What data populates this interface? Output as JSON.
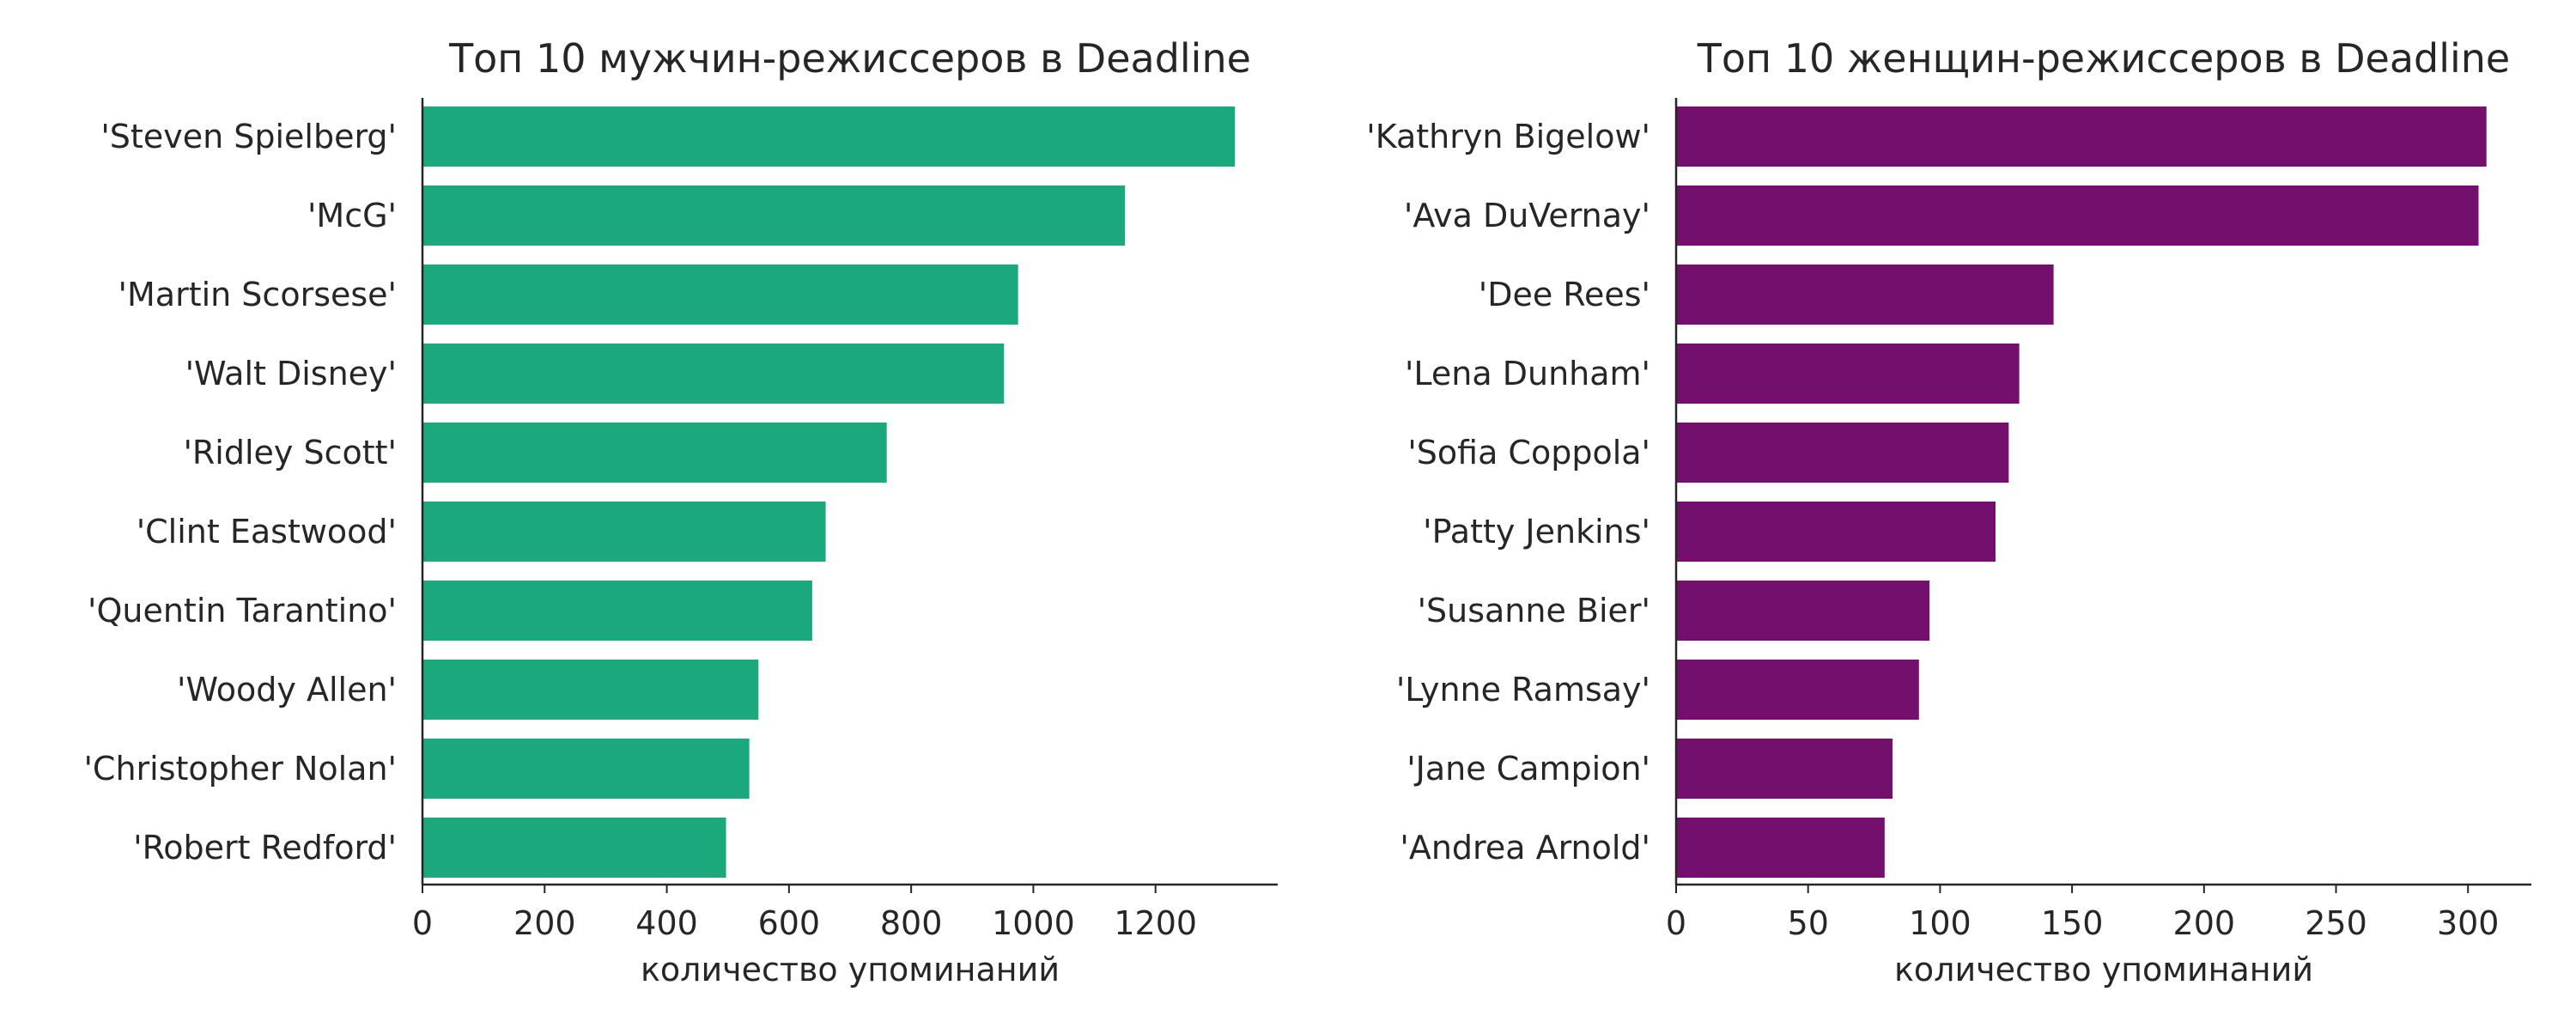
{
  "chart_data": [
    {
      "type": "bar",
      "orientation": "horizontal",
      "title": "Топ 10 мужчин-режиссеров в Deadline",
      "xlabel": "количество упоминаний",
      "ylabel": "",
      "categories": [
        "'Steven Spielberg'",
        "'McG'",
        "'Martin Scorsese'",
        "'Walt Disney'",
        "'Ridley Scott'",
        "'Clint Eastwood'",
        "'Quentin Tarantino'",
        "'Woody Allen'",
        "'Christopher Nolan'",
        "'Robert Redford'"
      ],
      "values": [
        1330,
        1150,
        975,
        952,
        760,
        660,
        638,
        550,
        535,
        497
      ],
      "xlim": [
        0,
        1400
      ],
      "xticks": [
        0,
        200,
        400,
        600,
        800,
        1000,
        1200
      ],
      "color": "#1aa87c",
      "grid": false
    },
    {
      "type": "bar",
      "orientation": "horizontal",
      "title": "Топ 10 женщин-режиссеров в Deadline",
      "xlabel": "количество упоминаний",
      "ylabel": "",
      "categories": [
        "'Kathryn Bigelow'",
        "'Ava DuVernay'",
        "'Dee Rees'",
        "'Lena Dunham'",
        "'Sofia Coppola'",
        "'Patty Jenkins'",
        "'Susanne Bier'",
        "'Lynne Ramsay'",
        "'Jane Campion'",
        "'Andrea Arnold'"
      ],
      "values": [
        307,
        304,
        143,
        130,
        126,
        121,
        96,
        92,
        82,
        79
      ],
      "xlim": [
        0,
        324
      ],
      "xticks": [
        0,
        50,
        100,
        150,
        200,
        250,
        300
      ],
      "color": "#73106e",
      "grid": false
    }
  ]
}
